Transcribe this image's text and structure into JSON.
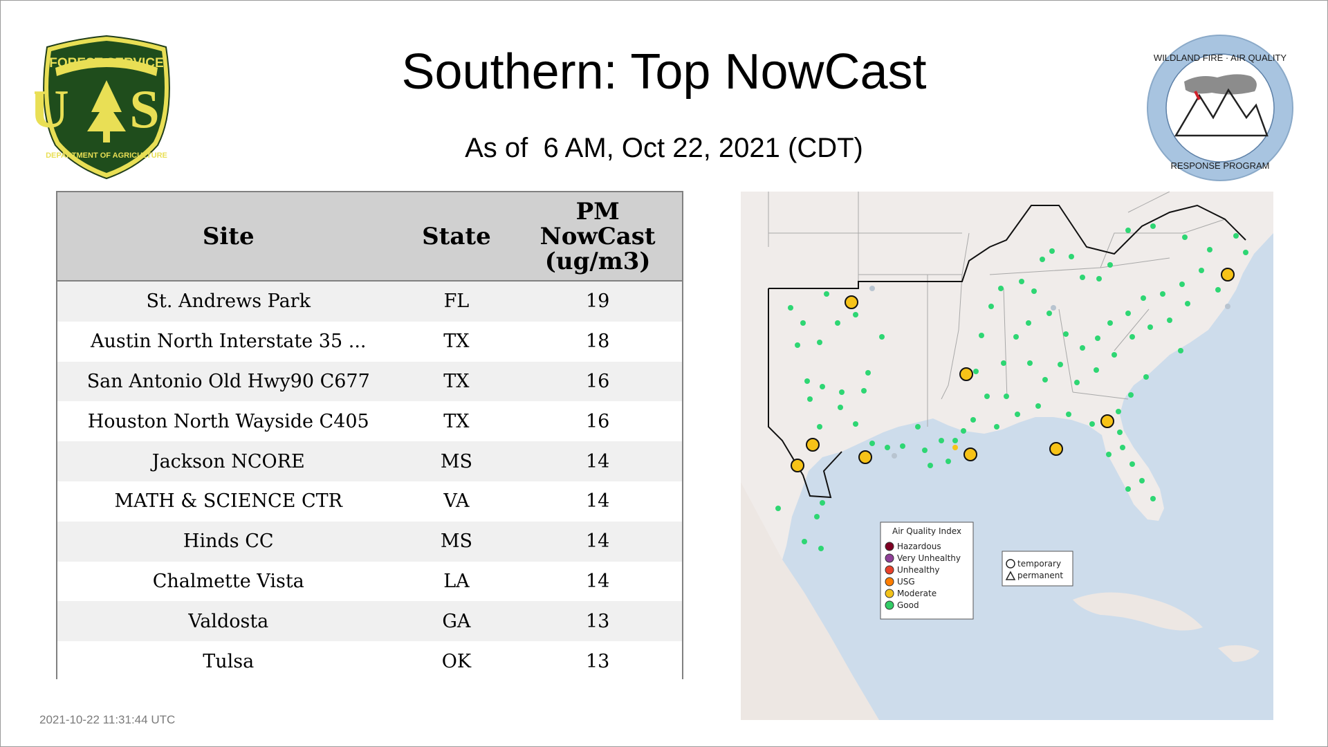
{
  "header": {
    "title": "Southern: Top NowCast",
    "subtitle": "As of  6 AM, Oct 22, 2021 (CDT)"
  },
  "logos": {
    "usfs": {
      "top_text": "FOREST SERVICE",
      "letters": "U S",
      "bottom_text": "DEPARTMENT OF AGRICULTURE"
    },
    "wfaq": {
      "top_text": "WILDLAND FIRE · AIR QUALITY",
      "bottom_text": "RESPONSE PROGRAM"
    }
  },
  "table": {
    "headers": [
      "Site",
      "State",
      "PM NowCast (ug/m3)"
    ],
    "header_lines": {
      "pm": [
        "PM",
        "NowCast",
        "(ug/m3)"
      ]
    },
    "rows": [
      {
        "site": "St. Andrews Park",
        "state": "FL",
        "value": "19"
      },
      {
        "site": "Austin North Interstate 35 ...",
        "state": "TX",
        "value": "18"
      },
      {
        "site": "San Antonio Old Hwy90 C677",
        "state": "TX",
        "value": "16"
      },
      {
        "site": "Houston North Wayside C405",
        "state": "TX",
        "value": "16"
      },
      {
        "site": "Jackson NCORE",
        "state": "MS",
        "value": "14"
      },
      {
        "site": "MATH & SCIENCE CTR",
        "state": "VA",
        "value": "14"
      },
      {
        "site": "Hinds CC",
        "state": "MS",
        "value": "14"
      },
      {
        "site": "Chalmette Vista",
        "state": "LA",
        "value": "14"
      },
      {
        "site": "Valdosta",
        "state": "GA",
        "value": "13"
      },
      {
        "site": "Tulsa",
        "state": "OK",
        "value": "13"
      }
    ]
  },
  "map": {
    "legend": {
      "title": "Air Quality Index",
      "items": [
        {
          "label": "Hazardous",
          "color": "#7e0023"
        },
        {
          "label": "Very Unhealthy",
          "color": "#8f3f97"
        },
        {
          "label": "Unhealthy",
          "color": "#e8412a"
        },
        {
          "label": "USG",
          "color": "#ff7e00"
        },
        {
          "label": "Moderate",
          "color": "#f2c21a"
        },
        {
          "label": "Good",
          "color": "#33cc66"
        }
      ]
    },
    "shape_legend": {
      "temporary": "temporary",
      "permanent": "permanent"
    },
    "colors": {
      "water": "#cddceb",
      "land": "#f0ecea",
      "good": "#2ed673",
      "moderate": "#f7c318",
      "missing": "#b8c4d0"
    }
  },
  "footer": {
    "timestamp": "2021-10-22 11:31:44 UTC"
  }
}
